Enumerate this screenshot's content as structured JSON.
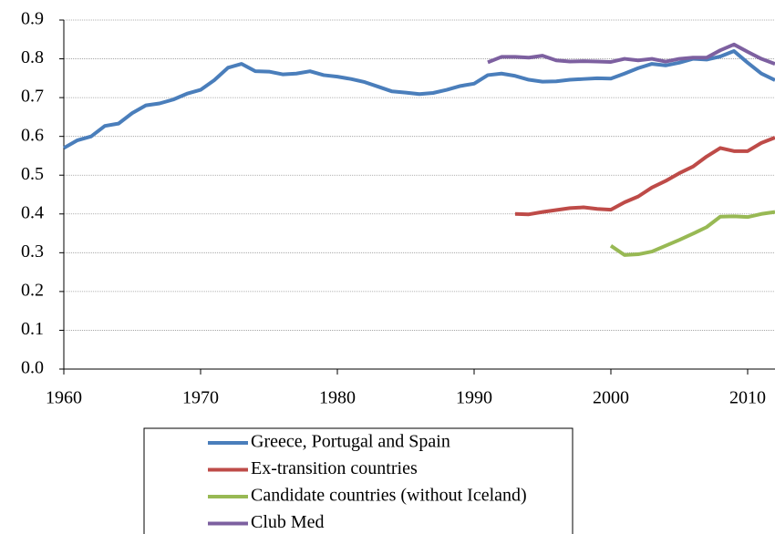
{
  "chart_data": {
    "type": "line",
    "x": [
      1960,
      1961,
      1962,
      1963,
      1964,
      1965,
      1966,
      1967,
      1968,
      1969,
      1970,
      1971,
      1972,
      1973,
      1974,
      1975,
      1976,
      1977,
      1978,
      1979,
      1980,
      1981,
      1982,
      1983,
      1984,
      1985,
      1986,
      1987,
      1988,
      1989,
      1990,
      1991,
      1992,
      1993,
      1994,
      1995,
      1996,
      1997,
      1998,
      1999,
      2000,
      2001,
      2002,
      2003,
      2004,
      2005,
      2006,
      2007,
      2008,
      2009,
      2010,
      2011,
      2012
    ],
    "series": [
      {
        "name": "Greece, Portugal and Spain",
        "color": "#4a7ebb",
        "values": [
          0.57,
          0.59,
          0.6,
          0.627,
          0.633,
          0.66,
          0.68,
          0.685,
          0.695,
          0.71,
          0.72,
          0.745,
          0.777,
          0.787,
          0.768,
          0.767,
          0.76,
          0.762,
          0.768,
          0.758,
          0.754,
          0.748,
          0.74,
          0.728,
          0.716,
          0.713,
          0.709,
          0.712,
          0.72,
          0.73,
          0.736,
          0.758,
          0.762,
          0.756,
          0.746,
          0.741,
          0.742,
          0.746,
          0.748,
          0.75,
          0.749,
          0.762,
          0.776,
          0.787,
          0.783,
          0.79,
          0.8,
          0.798,
          0.806,
          0.82,
          0.79,
          0.762,
          0.745
        ]
      },
      {
        "name": "Ex-transition countries",
        "color": "#be4b48",
        "values": [
          null,
          null,
          null,
          null,
          null,
          null,
          null,
          null,
          null,
          null,
          null,
          null,
          null,
          null,
          null,
          null,
          null,
          null,
          null,
          null,
          null,
          null,
          null,
          null,
          null,
          null,
          null,
          null,
          null,
          null,
          null,
          null,
          null,
          0.4,
          0.399,
          0.405,
          0.41,
          0.415,
          0.417,
          0.413,
          0.411,
          0.43,
          0.445,
          0.468,
          0.485,
          0.505,
          0.522,
          0.548,
          0.57,
          0.562,
          0.562,
          0.583,
          0.597
        ]
      },
      {
        "name": "Candidate countries (without Iceland)",
        "color": "#98b954",
        "values": [
          null,
          null,
          null,
          null,
          null,
          null,
          null,
          null,
          null,
          null,
          null,
          null,
          null,
          null,
          null,
          null,
          null,
          null,
          null,
          null,
          null,
          null,
          null,
          null,
          null,
          null,
          null,
          null,
          null,
          null,
          null,
          null,
          null,
          null,
          null,
          null,
          null,
          null,
          null,
          null,
          0.318,
          0.294,
          0.296,
          0.303,
          0.318,
          0.333,
          0.349,
          0.366,
          0.393,
          0.394,
          0.392,
          0.4,
          0.405
        ]
      },
      {
        "name": "Club Med",
        "color": "#7d60a0",
        "values": [
          null,
          null,
          null,
          null,
          null,
          null,
          null,
          null,
          null,
          null,
          null,
          null,
          null,
          null,
          null,
          null,
          null,
          null,
          null,
          null,
          null,
          null,
          null,
          null,
          null,
          null,
          null,
          null,
          null,
          null,
          null,
          0.791,
          0.805,
          0.805,
          0.803,
          0.808,
          0.796,
          0.793,
          0.794,
          0.793,
          0.792,
          0.8,
          0.796,
          0.8,
          0.793,
          0.8,
          0.803,
          0.803,
          0.822,
          0.837,
          0.818,
          0.8,
          0.787
        ]
      }
    ],
    "xlim": [
      1960,
      2012
    ],
    "xticks": [
      1960,
      1970,
      1980,
      1990,
      2000,
      2010
    ],
    "ylim": [
      0,
      0.9
    ],
    "yticks": [
      {
        "value": 0,
        "label": "0.0"
      },
      0.1,
      0.2,
      0.3,
      0.4,
      0.5,
      0.6,
      0.7,
      0.8,
      0.9
    ],
    "grid": true,
    "legend": "bottom"
  }
}
